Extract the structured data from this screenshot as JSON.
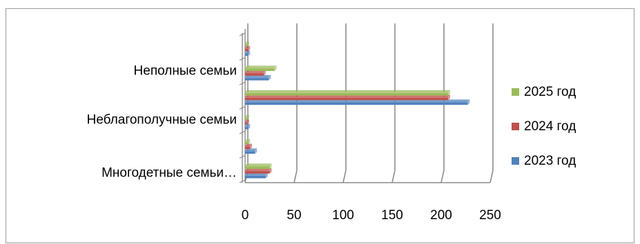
{
  "chart_data": {
    "type": "bar",
    "orientation": "horizontal",
    "categories": [
      "Многодетные семьи…",
      "",
      "Неблагополучные семьи",
      "",
      "Неполные семьи",
      ""
    ],
    "series": [
      {
        "name": "2023 год",
        "color": "#4F81BD",
        "values": [
          21,
          10,
          3,
          227,
          24,
          3
        ]
      },
      {
        "name": "2024 год",
        "color": "#C0504D",
        "values": [
          25,
          5,
          2,
          207,
          19,
          3
        ]
      },
      {
        "name": "2025 год",
        "color": "#9BBB59",
        "values": [
          25,
          3,
          2,
          207,
          30,
          2
        ]
      }
    ],
    "xlim": [
      0,
      250
    ],
    "xticks": [
      "0",
      "50",
      "100",
      "150",
      "200",
      "250"
    ],
    "grid": true,
    "legend_position": "right",
    "style": "3d-clustered-bar"
  }
}
